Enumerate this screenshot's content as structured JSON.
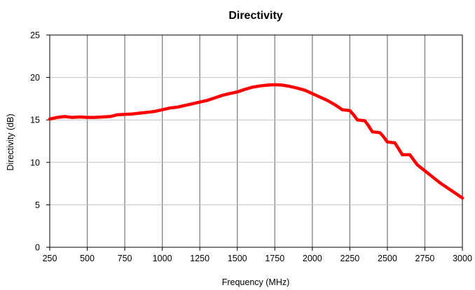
{
  "chart_data": {
    "type": "line",
    "title": "Directivity",
    "xlabel": "Frequency (MHz)",
    "ylabel": "Directivity (dB)",
    "xlim": [
      250,
      3000
    ],
    "ylim": [
      0,
      25
    ],
    "x_ticks": [
      250,
      500,
      750,
      1000,
      1250,
      1500,
      1750,
      2000,
      2250,
      2500,
      2750,
      3000
    ],
    "y_ticks": [
      0,
      5,
      10,
      15,
      20,
      25
    ],
    "grid": {
      "vertical": true,
      "horizontal": true
    },
    "legend": "none",
    "series": [
      {
        "color": "#ff0000",
        "x": [
          250,
          300,
          350,
          400,
          450,
          500,
          550,
          600,
          650,
          700,
          750,
          800,
          850,
          900,
          950,
          1000,
          1050,
          1100,
          1150,
          1200,
          1250,
          1300,
          1350,
          1400,
          1450,
          1500,
          1550,
          1600,
          1650,
          1700,
          1750,
          1800,
          1850,
          1900,
          1950,
          2000,
          2050,
          2100,
          2150,
          2200,
          2250,
          2275,
          2300,
          2350,
          2375,
          2400,
          2450,
          2475,
          2500,
          2550,
          2575,
          2600,
          2650,
          2675,
          2700,
          2750,
          2800,
          2850,
          2900,
          2950,
          3000
        ],
        "y": [
          15.1,
          15.3,
          15.4,
          15.3,
          15.35,
          15.3,
          15.3,
          15.35,
          15.4,
          15.6,
          15.65,
          15.7,
          15.8,
          15.9,
          16.0,
          16.2,
          16.4,
          16.5,
          16.7,
          16.9,
          17.1,
          17.3,
          17.6,
          17.9,
          18.1,
          18.3,
          18.6,
          18.85,
          19.0,
          19.1,
          19.15,
          19.1,
          18.95,
          18.75,
          18.5,
          18.1,
          17.7,
          17.3,
          16.8,
          16.2,
          16.1,
          15.6,
          15.0,
          14.9,
          14.3,
          13.6,
          13.5,
          13.0,
          12.4,
          12.3,
          11.6,
          10.9,
          10.9,
          10.3,
          9.7,
          9.0,
          8.3,
          7.6,
          7.0,
          6.4,
          5.8
        ]
      }
    ]
  }
}
